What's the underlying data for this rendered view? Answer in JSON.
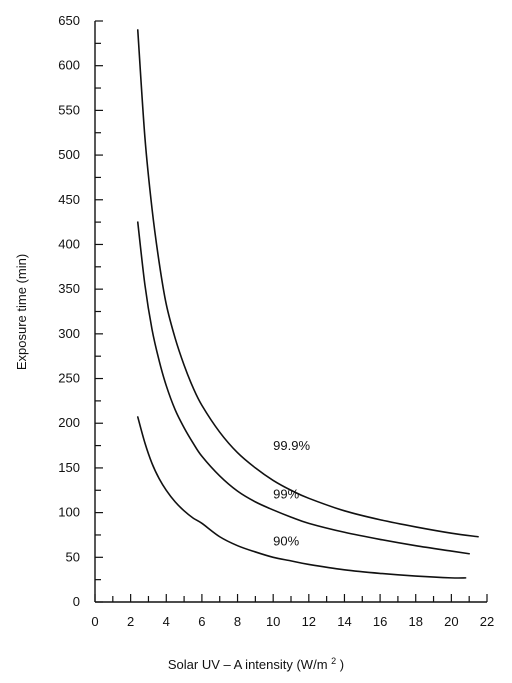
{
  "chart_data": {
    "type": "line",
    "title": "",
    "xlabel": "Solar UV – A intensity (W/m",
    "xlabel_superscript": "2",
    "xlabel_suffix": ")",
    "ylabel": "Exposure time (min)",
    "xlim": [
      0,
      22
    ],
    "ylim": [
      0,
      650
    ],
    "x_ticks": [
      0,
      2,
      4,
      6,
      8,
      10,
      12,
      14,
      16,
      18,
      20,
      22
    ],
    "y_ticks": [
      0,
      50,
      100,
      150,
      200,
      250,
      300,
      350,
      400,
      450,
      500,
      550,
      600,
      650
    ],
    "grid": false,
    "legend": "none",
    "series": [
      {
        "name": "99.9%",
        "x": [
          2.4,
          2.8,
          3.2,
          3.6,
          4,
          4.5,
          5,
          5.5,
          6,
          7,
          8,
          9,
          10,
          11,
          12,
          14,
          16,
          18,
          20,
          21.5
        ],
        "y": [
          640,
          520,
          440,
          380,
          333,
          295,
          265,
          240,
          220,
          190,
          167,
          150,
          136,
          125,
          116,
          102,
          92,
          84,
          77,
          73
        ]
      },
      {
        "name": "99%",
        "x": [
          2.4,
          2.8,
          3.2,
          3.6,
          4,
          4.5,
          5,
          5.5,
          6,
          7,
          8,
          9,
          10,
          11,
          12,
          14,
          16,
          18,
          20,
          21
        ],
        "y": [
          425,
          355,
          305,
          270,
          242,
          215,
          195,
          178,
          163,
          141,
          124,
          112,
          103,
          95,
          88,
          78,
          70,
          63,
          57,
          54
        ]
      },
      {
        "name": "90%",
        "x": [
          2.4,
          2.8,
          3.2,
          3.6,
          4,
          4.5,
          5,
          5.5,
          6,
          7,
          8,
          9,
          10,
          11,
          12,
          14,
          16,
          18,
          20,
          20.8
        ],
        "y": [
          207,
          178,
          155,
          138,
          125,
          112,
          102,
          94,
          88,
          73,
          63,
          56,
          50,
          46,
          42,
          36,
          32,
          29,
          27,
          27
        ]
      }
    ],
    "annotations": [
      {
        "text": "99.9%",
        "x": 10,
        "y": 170
      },
      {
        "text": "99%",
        "x": 10,
        "y": 116
      },
      {
        "text": "90%",
        "x": 10,
        "y": 63
      }
    ]
  }
}
